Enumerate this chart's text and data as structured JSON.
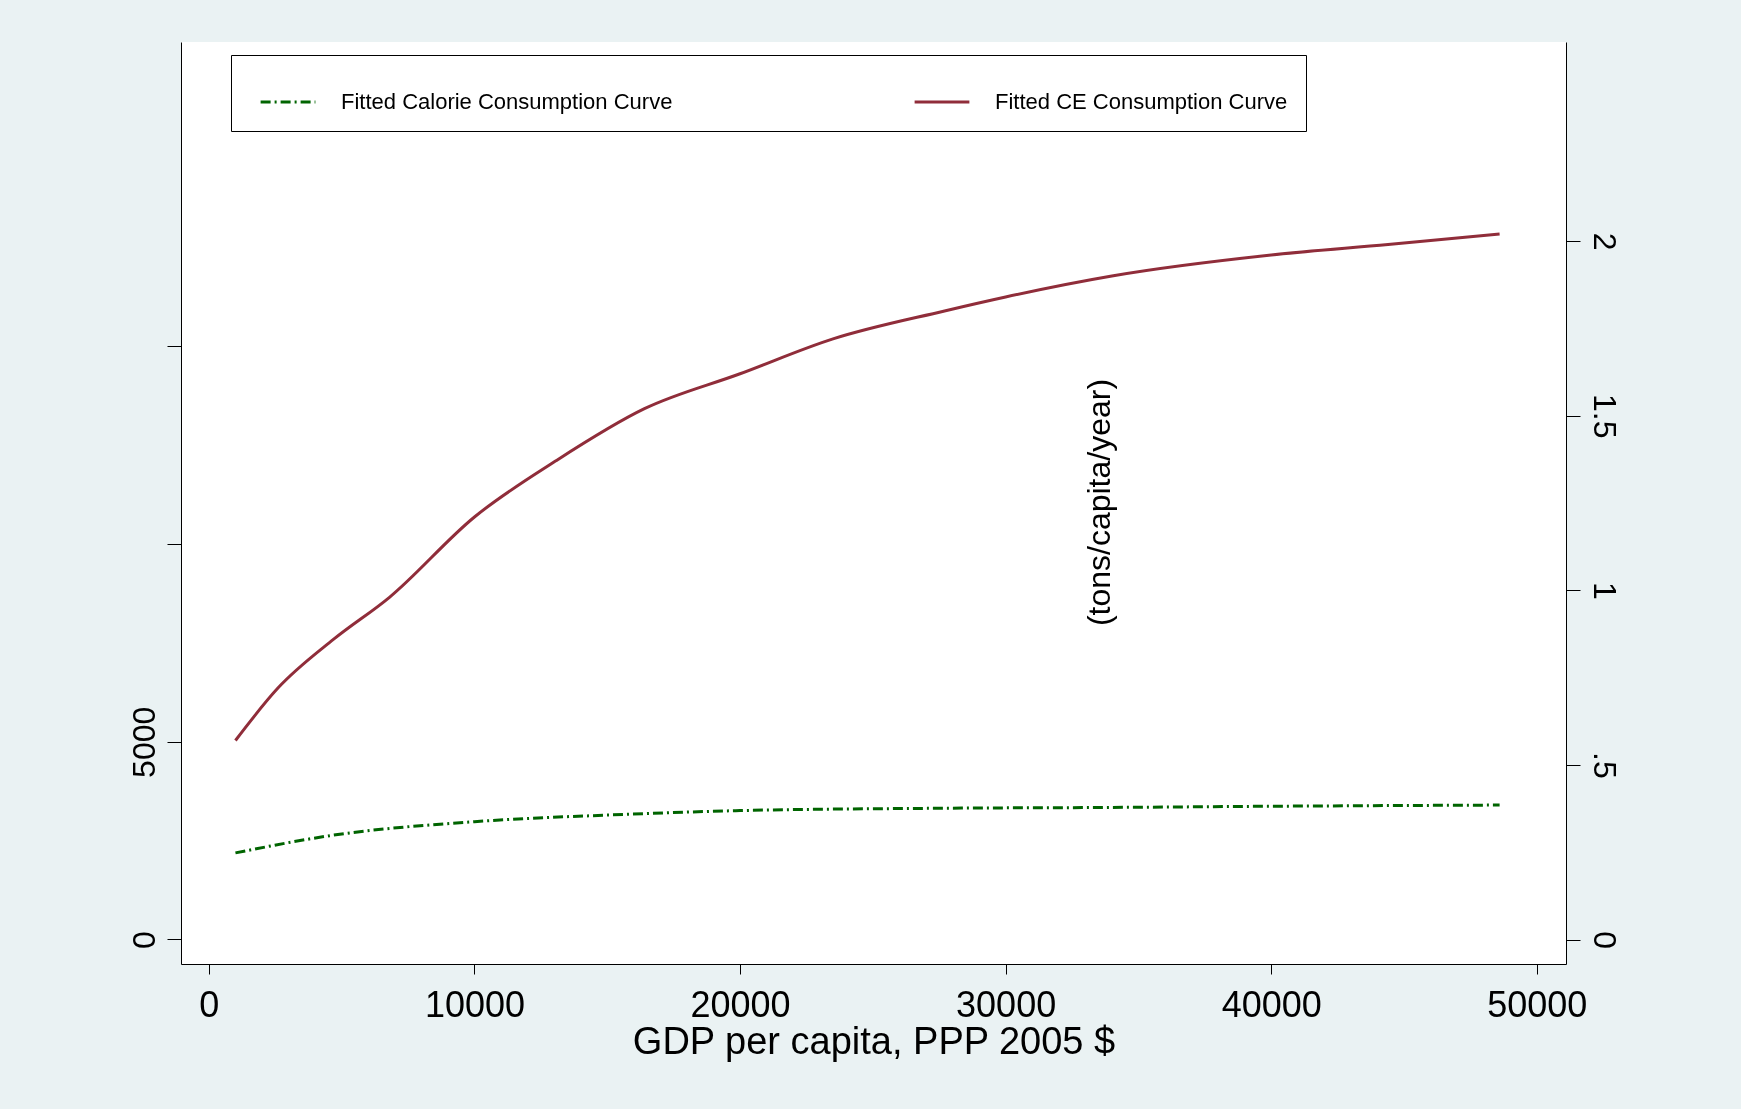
{
  "chart_data": {
    "type": "line",
    "xlabel": "GDP per capita, PPP 2005 $",
    "y2label": "(tons/capita/year)",
    "xlim": [
      -1050,
      51100
    ],
    "xticks": [
      0,
      10000,
      20000,
      30000,
      40000,
      50000
    ],
    "ylim": [
      -620,
      22700
    ],
    "yticks": [
      0,
      5000,
      {
        "value": 10000,
        "label": null
      },
      {
        "value": 15000,
        "label": null
      }
    ],
    "y2lim": [
      -0.07,
      2.57
    ],
    "y2ticks": [
      0,
      {
        "value": 0.5,
        "label": ".5"
      },
      1,
      1.5,
      2
    ],
    "grid": false,
    "legend": "top",
    "marker": "none",
    "series": [
      {
        "name": "Fitted Calorie Consumption Curve",
        "color": "#006400",
        "line_style": "dashed",
        "x": [
          1000,
          4700,
          10000,
          15100,
          20000,
          27700,
          34000,
          40000,
          48600
        ],
        "values": [
          2190,
          2640,
          2980,
          3150,
          3260,
          3320,
          3340,
          3370,
          3400
        ]
      },
      {
        "name": "Fitted CE Consumption Curve",
        "color": "#902d3a",
        "line_style": "solid",
        "axis": "y2",
        "x": [
          1000,
          2600,
          4700,
          6800,
          10000,
          13050,
          16400,
          20000,
          23500,
          27700,
          30000,
          34000,
          40000,
          44400,
          48600
        ],
        "values": [
          0.57,
          0.72,
          0.86,
          0.98,
          1.21,
          1.37,
          1.52,
          1.62,
          1.72,
          1.8,
          1.84,
          1.9,
          1.96,
          1.99,
          2.02
        ]
      }
    ]
  }
}
